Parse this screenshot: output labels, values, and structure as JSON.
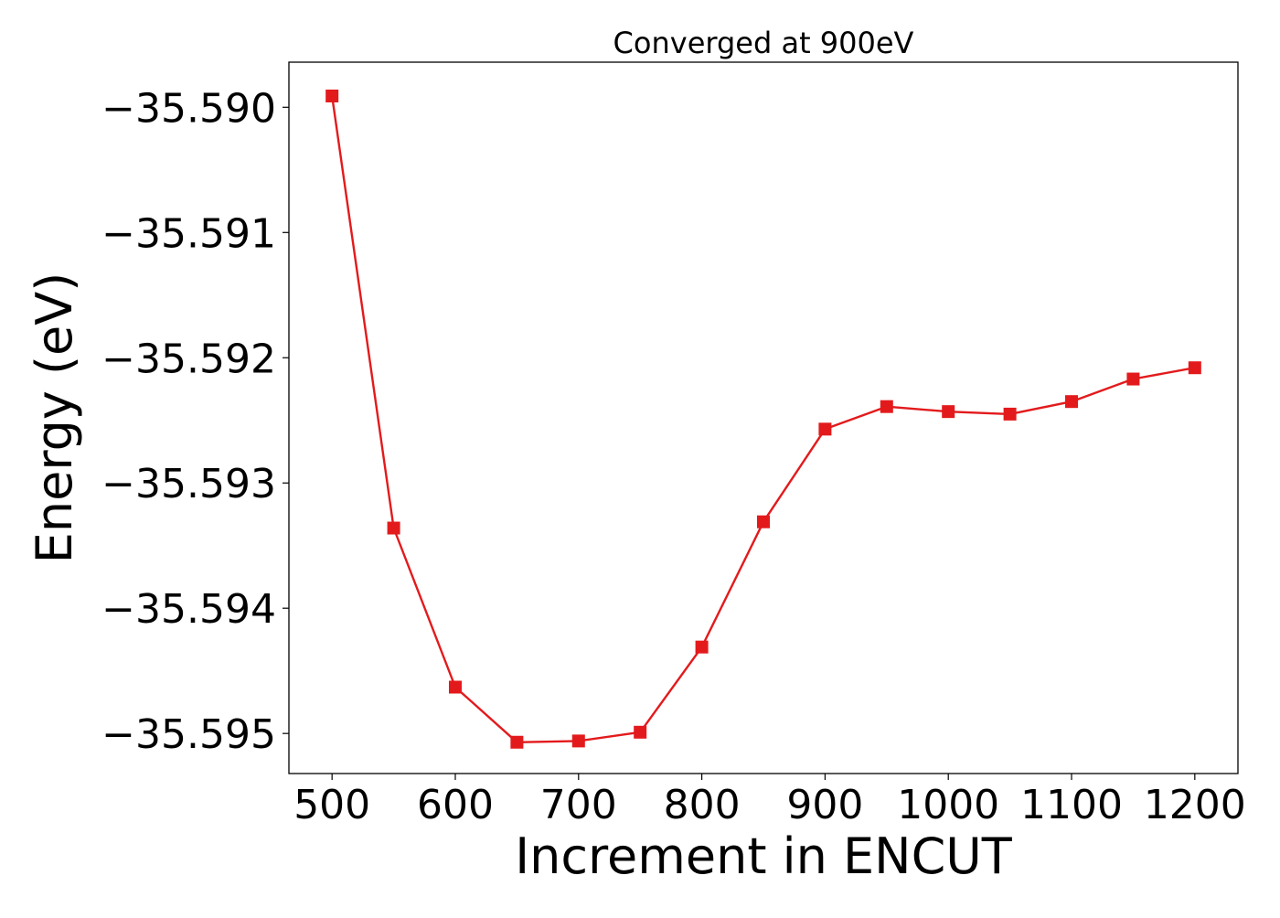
{
  "chart_data": {
    "type": "line",
    "title": "Converged at 900eV",
    "xlabel": "Increment in ENCUT",
    "ylabel": "Energy (eV)",
    "x": [
      500,
      550,
      600,
      650,
      700,
      750,
      800,
      850,
      900,
      950,
      1000,
      1050,
      1100,
      1150,
      1200
    ],
    "series": [
      {
        "values": [
          -35.58991,
          -35.59336,
          -35.59463,
          -35.59507,
          -35.59506,
          -35.59499,
          -35.59431,
          -35.59331,
          -35.59257,
          -35.59239,
          -35.59243,
          -35.59245,
          -35.59235,
          -35.59217,
          -35.59208
        ],
        "color": "#e31a1c",
        "marker": "square"
      }
    ],
    "xlim": [
      465,
      1235
    ],
    "ylim": [
      -35.59532,
      -35.58964
    ],
    "xticks": [
      500,
      600,
      700,
      800,
      900,
      1000,
      1100,
      1200
    ],
    "xtick_labels": [
      "500",
      "600",
      "700",
      "800",
      "900",
      "1000",
      "1100",
      "1200"
    ],
    "yticks": [
      -35.59,
      -35.591,
      -35.592,
      -35.593,
      -35.594,
      -35.595
    ],
    "ytick_labels": [
      "−35.590",
      "−35.591",
      "−35.592",
      "−35.593",
      "−35.594",
      "−35.595"
    ],
    "grid": false,
    "legend": "none"
  }
}
